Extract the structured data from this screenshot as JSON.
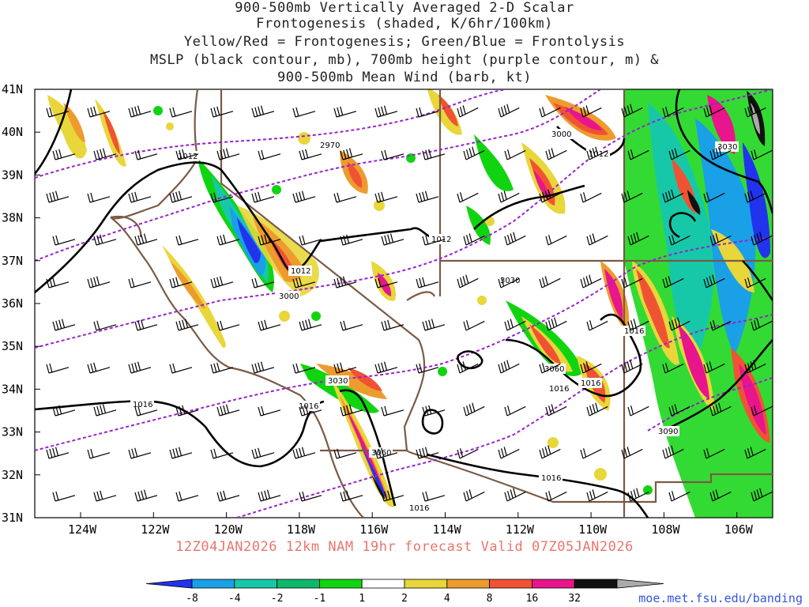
{
  "title_lines": [
    "900-500mb Vertically Averaged 2-D Scalar",
    "Frontogenesis (shaded, K/6hr/100km)",
    "Yellow/Red = Frontogenesis;  Green/Blue = Frontolysis",
    "MSLP (black contour, mb), 700mb height (purple contour, m) &",
    "900-500mb Mean Wind (barb, kt)"
  ],
  "valid_line": "12Z04JAN2026 12km NAM 19hr forecast Valid 07Z05JAN2026",
  "credit": "moe.met.fsu.edu/banding",
  "lat_labels": [
    "41N",
    "40N",
    "39N",
    "38N",
    "37N",
    "36N",
    "35N",
    "34N",
    "33N",
    "32N",
    "31N"
  ],
  "lon_labels": [
    "124W",
    "122W",
    "120W",
    "118W",
    "116W",
    "114W",
    "112W",
    "110W",
    "108W",
    "106W"
  ],
  "colorbar": {
    "ticks": [
      "-8",
      "-4",
      "-2",
      "-1",
      "1",
      "2",
      "4",
      "8",
      "16",
      "32"
    ],
    "colors": [
      "#2233ee",
      "#19a0e6",
      "#17c8a8",
      "#0eb86b",
      "#11d411",
      "#ffffff",
      "#e8d63a",
      "#ee9b2e",
      "#f05333",
      "#e8158c",
      "#111111",
      "#aaaaaa"
    ]
  },
  "mslp_labels": [
    "1012",
    "1012",
    "1012",
    "1012",
    "1016",
    "1016",
    "1016",
    "1016",
    "1016",
    "1016",
    "1016"
  ],
  "height_labels": [
    "2970",
    "3000",
    "3000",
    "3030",
    "3030",
    "3030",
    "3060",
    "3060",
    "3090"
  ],
  "shading_colors": {
    "yellow": "#e8d63a",
    "orange": "#ee9b2e",
    "red": "#f05333",
    "magenta": "#e8158c",
    "green": "#11c711",
    "teal": "#17c8a8",
    "cyan": "#19a0e6",
    "blue": "#2233ee",
    "black": "#111111",
    "gray": "#aaaaaa"
  },
  "line_colors": {
    "mslp": "#000000",
    "height": "#9922cc",
    "border": "#7a5a45",
    "barb": "#000000"
  }
}
